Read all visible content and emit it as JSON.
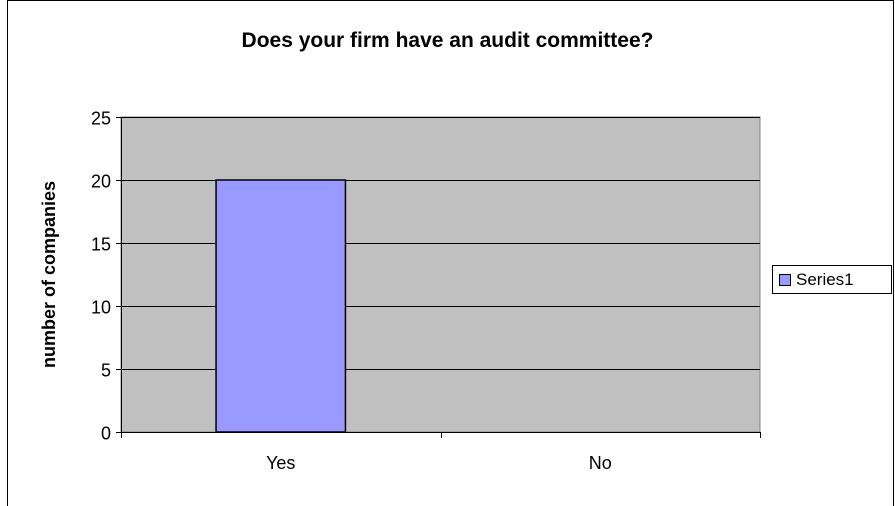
{
  "chart_data": {
    "type": "bar",
    "title": "Does your firm have an audit committee?",
    "xlabel": "",
    "ylabel": "number of companies",
    "categories": [
      "Yes",
      "No"
    ],
    "series": [
      {
        "name": "Series1",
        "values": [
          20,
          0
        ]
      }
    ],
    "ylim": [
      0,
      25
    ],
    "yticks": [
      0,
      5,
      10,
      15,
      20,
      25
    ],
    "grid": true,
    "legend": "right",
    "colors": {
      "bar": "#9999ff",
      "plot_background": "#c0c0c0",
      "gridline": "#000000"
    }
  }
}
